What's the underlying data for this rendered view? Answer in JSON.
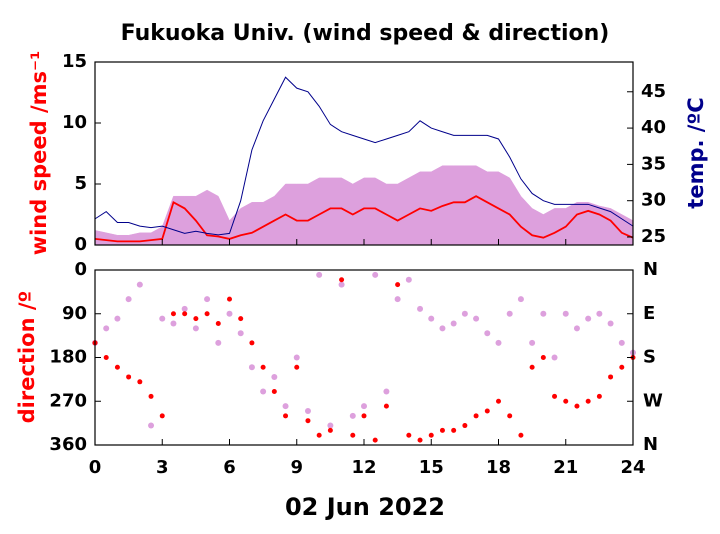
{
  "chart_data": [
    {
      "type": "line",
      "title": "Fukuoka Univ. (wind speed & direction)",
      "ylabel": "wind speed /ms⁻¹",
      "y2label": "temp. /ºC",
      "x": [
        0,
        0.5,
        1,
        1.5,
        2,
        2.5,
        3,
        3.5,
        4,
        4.5,
        5,
        5.5,
        6,
        6.5,
        7,
        7.5,
        8,
        8.5,
        9,
        9.5,
        10,
        10.5,
        11,
        11.5,
        12,
        12.5,
        13,
        13.5,
        14,
        14.5,
        15,
        15.5,
        16,
        16.5,
        17,
        17.5,
        18,
        18.5,
        19,
        19.5,
        20,
        20.5,
        21,
        21.5,
        22,
        22.5,
        23,
        23.5,
        24
      ],
      "xlim": [
        0,
        24
      ],
      "ylim": [
        0,
        15
      ],
      "yticks": [
        0,
        5,
        10,
        15
      ],
      "y2lim": [
        23.9,
        49.1
      ],
      "y2ticks": [
        25,
        30,
        35,
        40,
        45
      ],
      "series": [
        {
          "color": "#dda0dd",
          "fill": true,
          "values": [
            1.2,
            1,
            0.8,
            0.8,
            1,
            1,
            1.5,
            4,
            4,
            4,
            4.5,
            4,
            2,
            3,
            3.5,
            3.5,
            4,
            5,
            5,
            5,
            5.5,
            5.5,
            5.5,
            5,
            5.5,
            5.5,
            5,
            5,
            5.5,
            6,
            6,
            6.5,
            6.5,
            6.5,
            6.5,
            6,
            6,
            5.5,
            4,
            3,
            2.5,
            3,
            3,
            3.5,
            3.5,
            3.2,
            3,
            2.5,
            2
          ]
        },
        {
          "color": "#ff0000",
          "values": [
            0.5,
            0.4,
            0.3,
            0.3,
            0.3,
            0.4,
            0.5,
            3.5,
            3,
            2,
            0.8,
            0.7,
            0.5,
            0.8,
            1,
            1.5,
            2,
            2.5,
            2,
            2,
            2.5,
            3,
            3,
            2.5,
            3,
            3,
            2.5,
            2,
            2.5,
            3,
            2.8,
            3.2,
            3.5,
            3.5,
            4,
            3.5,
            3,
            2.5,
            1.5,
            0.8,
            0.6,
            1,
            1.5,
            2.5,
            2.8,
            2.5,
            2,
            1,
            0.6
          ]
        },
        {
          "color": "#00008b",
          "axis": "y2",
          "values": [
            27.5,
            28.5,
            27,
            27,
            26.5,
            26.3,
            26.5,
            26,
            25.5,
            25.8,
            25.5,
            25.3,
            25.5,
            30,
            37,
            41,
            44,
            47,
            45.5,
            45,
            43,
            40.5,
            39.5,
            39,
            38.5,
            38,
            38.5,
            39,
            39.5,
            41,
            40,
            39.5,
            39,
            39,
            39,
            39,
            38.5,
            36,
            33,
            31,
            30,
            29.5,
            29.5,
            29.5,
            29.5,
            29,
            28.5,
            27.5,
            26.5
          ]
        }
      ]
    },
    {
      "type": "scatter",
      "ylabel": "direction /º",
      "xlabel": "02 Jun 2022",
      "x": [
        0,
        0.5,
        1,
        1.5,
        2,
        2.5,
        3,
        3.5,
        4,
        4.5,
        5,
        5.5,
        6,
        6.5,
        7,
        7.5,
        8,
        8.5,
        9,
        9.5,
        10,
        10.5,
        11,
        11.5,
        12,
        12.5,
        13,
        13.5,
        14,
        14.5,
        15,
        15.5,
        16,
        16.5,
        17,
        17.5,
        18,
        18.5,
        19,
        19.5,
        20,
        20.5,
        21,
        21.5,
        22,
        22.5,
        23,
        23.5,
        24
      ],
      "xlim": [
        0,
        24
      ],
      "xticks": [
        0,
        3,
        6,
        9,
        12,
        15,
        18,
        21,
        24
      ],
      "ylim": [
        360,
        0
      ],
      "yticks": [
        0,
        90,
        180,
        270,
        360
      ],
      "y2ticks": [
        {
          "value": 0,
          "label": "N"
        },
        {
          "value": 90,
          "label": "E"
        },
        {
          "value": 180,
          "label": "S"
        },
        {
          "value": 270,
          "label": "W"
        },
        {
          "value": 360,
          "label": "N"
        }
      ],
      "series": [
        {
          "color": "#dda0dd",
          "values": [
            150,
            120,
            100,
            60,
            30,
            320,
            100,
            110,
            80,
            120,
            60,
            150,
            90,
            130,
            200,
            250,
            220,
            280,
            180,
            290,
            10,
            320,
            30,
            300,
            280,
            10,
            250,
            60,
            20,
            80,
            100,
            120,
            110,
            90,
            100,
            130,
            150,
            90,
            60,
            150,
            90,
            180,
            90,
            120,
            100,
            90,
            110,
            150,
            170
          ]
        },
        {
          "color": "#ff0000",
          "values": [
            150,
            180,
            200,
            220,
            230,
            260,
            300,
            90,
            90,
            100,
            90,
            110,
            60,
            100,
            150,
            200,
            250,
            300,
            200,
            310,
            340,
            330,
            20,
            340,
            300,
            350,
            280,
            30,
            340,
            350,
            340,
            330,
            330,
            320,
            300,
            290,
            270,
            300,
            340,
            200,
            180,
            260,
            270,
            280,
            270,
            260,
            220,
            200,
            180
          ]
        }
      ]
    }
  ]
}
